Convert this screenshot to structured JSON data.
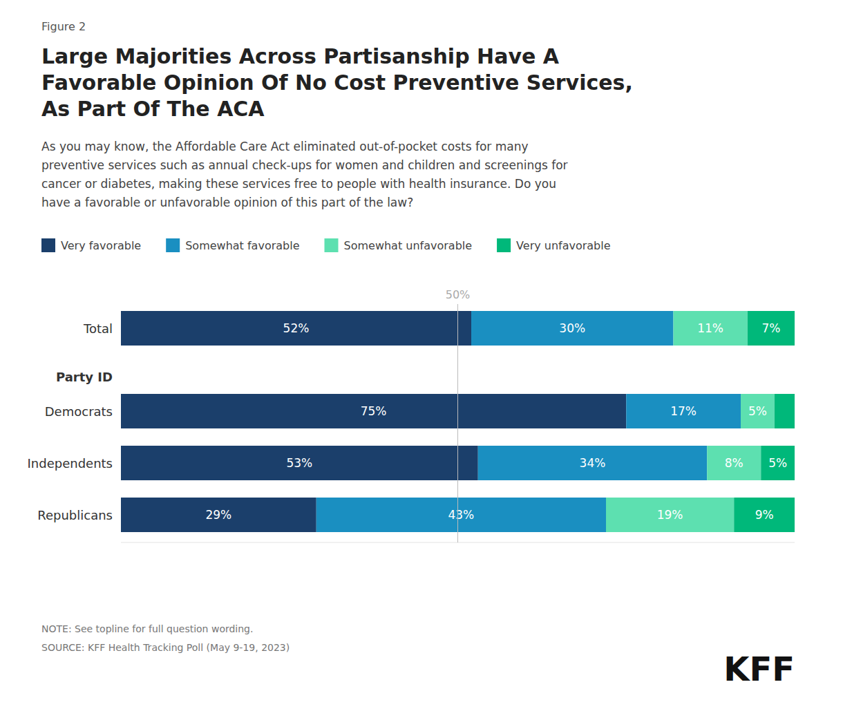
{
  "chart_data": {
    "type": "bar",
    "orientation": "horizontal",
    "stacked": true,
    "figure_label": "Figure 2",
    "title": "Large Majorities Across Partisanship Have A\nFavorable Opinion Of No Cost Preventive Services,\nAs Part Of The ACA",
    "subtitle": "As you may know, the Affordable Care Act eliminated out-of-pocket costs for many\npreventive services such as annual check-ups for women and children and screenings for\ncancer or diabetes, making these services free to people with health insurance. Do you\nhave a favorable or unfavorable opinion of this part of the law?",
    "categories": [
      "Total",
      "Democrats",
      "Independents",
      "Republicans"
    ],
    "group_label": "Party ID",
    "series": [
      {
        "name": "Very favorable",
        "color": "#1b3f6b",
        "values": [
          52,
          75,
          53,
          29
        ],
        "value_labels": [
          "52%",
          "75%",
          "53%",
          "29%"
        ]
      },
      {
        "name": "Somewhat favorable",
        "color": "#1a8fc1",
        "values": [
          30,
          17,
          34,
          43
        ],
        "value_labels": [
          "30%",
          "17%",
          "34%",
          "43%"
        ]
      },
      {
        "name": "Somewhat unfavorable",
        "color": "#5de0b0",
        "values": [
          11,
          5,
          8,
          19
        ],
        "value_labels": [
          "11%",
          "5%",
          "8%",
          "19%"
        ]
      },
      {
        "name": "Very unfavorable",
        "color": "#00b87a",
        "values": [
          7,
          3,
          5,
          9
        ],
        "value_labels": [
          "7%",
          null,
          "5%",
          "9%"
        ]
      }
    ],
    "xlim": [
      0,
      100
    ],
    "reference_line": {
      "value": 50,
      "label": "50%"
    },
    "data_labels": true,
    "tick_labels": false,
    "grid": false,
    "legend": "top",
    "note": "NOTE: See topline for full question wording.",
    "source": "SOURCE: KFF Health Tracking Poll (May 9-19, 2023)",
    "logo": "KFF"
  }
}
